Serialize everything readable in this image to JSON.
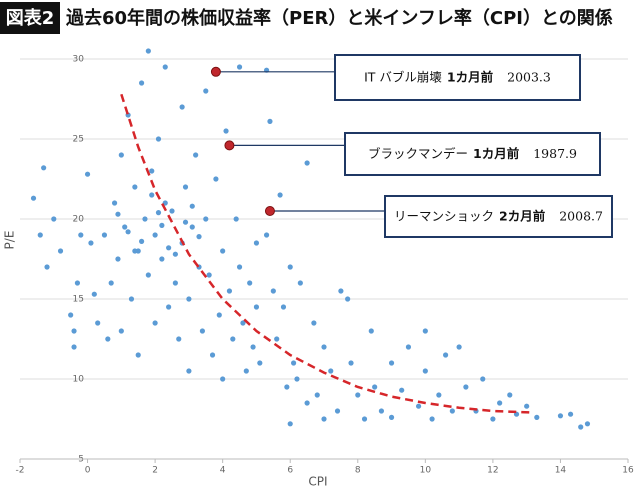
{
  "chart_data": {
    "type": "scatter",
    "badge": "図表2",
    "title": "過去60年間の株価収益率（PER）と米インフレ率（CPI）との関係",
    "x_label": "CPI",
    "y_label": "P/E",
    "xlim": [
      -2,
      16
    ],
    "xticks": [
      -2,
      0,
      2,
      4,
      6,
      8,
      10,
      12,
      14,
      16
    ],
    "ylim": [
      5,
      31
    ],
    "yticks": [
      5,
      10,
      15,
      20,
      25,
      30
    ],
    "grid": true,
    "color": "#5b9bd5",
    "x": [
      -1.6,
      -1.3,
      -1.2,
      -1.4,
      -1,
      -0.8,
      -0.5,
      -0.4,
      -0.4,
      -0.3,
      -0.2,
      0,
      0.1,
      0.2,
      0.3,
      0.5,
      0.6,
      0.7,
      0.8,
      0.9,
      1,
      1,
      1.1,
      1.2,
      1.3,
      1.4,
      1.5,
      1.5,
      1.6,
      1.7,
      1.8,
      1.8,
      1.9,
      2,
      2,
      2.1,
      2.2,
      2.3,
      2.3,
      2.4,
      2.5,
      2.6,
      2.7,
      2.8,
      2.8,
      2.9,
      3,
      3,
      3.1,
      3.2,
      3.3,
      3.4,
      3.5,
      3.5,
      3.6,
      3.7,
      3.8,
      3.9,
      4,
      4,
      4.1,
      4.2,
      4.3,
      4.4,
      4.5,
      4.5,
      4.6,
      4.7,
      4.8,
      4.9,
      5,
      5,
      5.1,
      5.3,
      5.3,
      5.4,
      5.5,
      5.6,
      5.7,
      5.8,
      5.9,
      6,
      6,
      6.1,
      6.2,
      6.3,
      6.5,
      6.5,
      6.7,
      6.8,
      7,
      7,
      7.2,
      7.4,
      7.5,
      7.7,
      7.8,
      8,
      8.2,
      8.4,
      8.5,
      8.7,
      9,
      9,
      9.3,
      9.5,
      9.8,
      10,
      10,
      10.2,
      10.4,
      10.6,
      10.8,
      11,
      11.2,
      11.5,
      11.7,
      12,
      12.2,
      12.5,
      12.7,
      13,
      13.3,
      14,
      14.3,
      14.6,
      14.8,
      1.2,
      1.6,
      2.1,
      2.4,
      2.9,
      3.3,
      1.9,
      2.6,
      3.1,
      1.4,
      0.9,
      2.2
    ],
    "values": [
      21.3,
      23.2,
      17,
      19,
      20,
      18,
      14,
      13,
      12,
      16,
      19,
      22.8,
      18.5,
      15.3,
      13.5,
      19,
      12.5,
      16,
      21,
      17.5,
      13,
      24,
      19.5,
      26.5,
      15,
      22,
      18,
      11.5,
      28.5,
      20,
      30.5,
      16.5,
      23,
      19,
      13.5,
      25,
      17.5,
      29.5,
      21,
      14.5,
      20.5,
      16,
      12.5,
      27,
      18.5,
      22,
      15,
      10.5,
      19.5,
      24,
      17,
      13,
      20,
      28,
      16.5,
      11.5,
      22.5,
      14,
      18,
      10,
      25.5,
      15.5,
      12.5,
      20,
      17,
      29.5,
      13.5,
      10.5,
      16,
      12,
      18.5,
      14.5,
      11,
      19,
      29.3,
      26.1,
      15.5,
      12.5,
      21.5,
      14.5,
      9.5,
      7.2,
      17,
      11,
      10,
      16,
      23.5,
      8.5,
      13.5,
      9,
      12,
      7.5,
      10.5,
      8,
      15.5,
      15,
      11,
      9,
      7.5,
      13,
      9.5,
      8,
      11,
      7.6,
      9.3,
      12,
      8.3,
      10.5,
      13,
      7.5,
      9,
      11.5,
      8,
      12,
      9.5,
      8,
      10,
      7.5,
      8.5,
      9,
      7.8,
      8.3,
      7.6,
      7.7,
      7.8,
      7,
      7.2,
      19.2,
      18.6,
      20.4,
      18.2,
      19.8,
      18.9,
      21.5,
      17.8,
      20.8,
      18,
      20.3,
      19.6
    ],
    "trend": {
      "color": "#d6262a",
      "x": [
        1,
        1.5,
        2,
        3,
        4,
        5,
        6,
        7,
        8,
        9,
        10,
        11,
        12,
        13.2
      ],
      "values": [
        27.8,
        24.5,
        21.8,
        17.8,
        15,
        13,
        11.5,
        10.4,
        9.5,
        8.9,
        8.5,
        8.2,
        8,
        7.9
      ]
    },
    "annotations": [
      {
        "label": "IT バブル崩壊",
        "lead": "1カ月前",
        "date": "2003.3",
        "x": 3.8,
        "y": 29.2
      },
      {
        "label": "ブラックマンデー",
        "lead": "1カ月前",
        "date": "1987.9",
        "x": 4.2,
        "y": 24.6
      },
      {
        "label": "リーマンショック",
        "lead": "2カ月前",
        "date": "2008.7",
        "x": 5.4,
        "y": 20.5
      }
    ],
    "highlight_color": "#c0272d"
  }
}
